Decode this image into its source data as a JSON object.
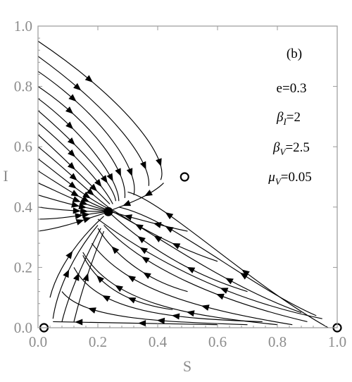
{
  "chart_data": {
    "type": "streamplot",
    "xlabel": "S",
    "ylabel": "I",
    "xlim": [
      0,
      1
    ],
    "ylim": [
      0,
      1
    ],
    "xticks": [
      "0.0",
      "0.2",
      "0.4",
      "0.6",
      "0.8",
      "1.0"
    ],
    "yticks": [
      "0.0",
      "0.2",
      "0.4",
      "0.6",
      "0.8",
      "1.0"
    ],
    "panel_label": "(b)",
    "parameters": [
      {
        "sym": "e",
        "sub": "",
        "val": "=0.3"
      },
      {
        "sym": "β",
        "sub": "I",
        "val": "=2"
      },
      {
        "sym": "β",
        "sub": "V",
        "val": "=2.5"
      },
      {
        "sym": "μ",
        "sub": "V",
        "val": "=0.05"
      }
    ],
    "equilibria": [
      {
        "S": 0.235,
        "I": 0.385,
        "type": "stable"
      },
      {
        "S": 0.49,
        "I": 0.5,
        "type": "unstable"
      },
      {
        "S": 0.02,
        "I": 0.0,
        "type": "unstable"
      },
      {
        "S": 1.0,
        "I": 0.0,
        "type": "unstable"
      }
    ],
    "grid": false
  }
}
